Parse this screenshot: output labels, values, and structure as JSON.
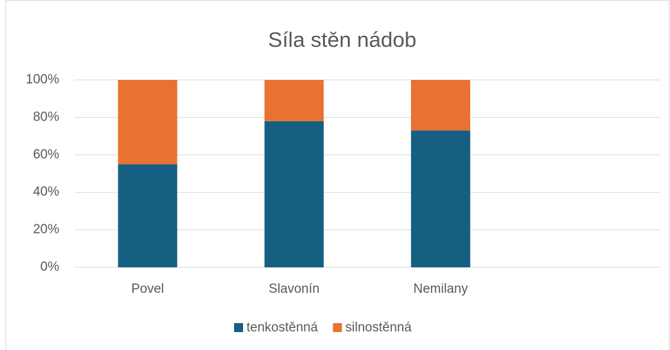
{
  "chart_data": {
    "type": "stacked_bar",
    "title": "Síla stěn nádob",
    "categories": [
      "Povel",
      "Slavonín",
      "Nemilany",
      null
    ],
    "series": [
      {
        "name": "tenkostěnná",
        "color": "#156082",
        "values": [
          55,
          78,
          73,
          null
        ]
      },
      {
        "name": "silnostěnná",
        "color": "#e97132",
        "values": [
          45,
          22,
          27,
          null
        ]
      }
    ],
    "ylim": [
      0,
      100
    ],
    "yticks": [
      {
        "value": 0,
        "label": "0%"
      },
      {
        "value": 20,
        "label": "20%"
      },
      {
        "value": 40,
        "label": "40%"
      },
      {
        "value": 60,
        "label": "60%"
      },
      {
        "value": 80,
        "label": "80%"
      },
      {
        "value": 100,
        "label": "100%"
      }
    ],
    "grid": true,
    "legend": "bottom"
  }
}
